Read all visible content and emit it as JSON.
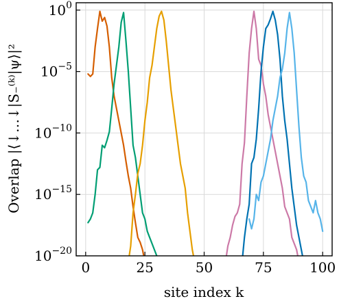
{
  "chart_data": {
    "type": "line",
    "title": "",
    "xlabel": "site index k",
    "ylabel": "Overlap |⟨↓…↓|S₋⁽ᵏ⁾|ψ⟩|²",
    "xlim": [
      -4,
      104
    ],
    "ylim_log10": [
      -20,
      0.6
    ],
    "yscale": "log",
    "grid": true,
    "legend": "none",
    "x_ticks": [
      0,
      25,
      50,
      75,
      100
    ],
    "x_tick_labels": [
      "0",
      "25",
      "50",
      "75",
      "100"
    ],
    "y_ticks_log10": [
      0,
      -5,
      -10,
      -15,
      -20
    ],
    "y_tick_labels": [
      {
        "base": "10",
        "exp": "0"
      },
      {
        "base": "10",
        "exp": "−5"
      },
      {
        "base": "10",
        "exp": "−10"
      },
      {
        "base": "10",
        "exp": "−15"
      },
      {
        "base": "10",
        "exp": "−20"
      }
    ],
    "series": [
      {
        "color": "#D55E00",
        "log10_points": [
          [
            1,
            -5.2
          ],
          [
            2,
            -5.4
          ],
          [
            3,
            -5.2
          ],
          [
            4,
            -3
          ],
          [
            5,
            -1.5
          ],
          [
            6,
            -0.1
          ],
          [
            7,
            -0.9
          ],
          [
            8,
            -0.6
          ],
          [
            9,
            -1.3
          ],
          [
            10,
            -3
          ],
          [
            11,
            -5.5
          ],
          [
            12,
            -7
          ],
          [
            13,
            -8
          ],
          [
            14,
            -9
          ],
          [
            15,
            -10
          ],
          [
            16,
            -11
          ],
          [
            17,
            -12.3
          ],
          [
            18,
            -13.5
          ],
          [
            19,
            -14.5
          ],
          [
            20,
            -16
          ],
          [
            21,
            -17.3
          ],
          [
            22,
            -18.5
          ],
          [
            23,
            -18.9
          ],
          [
            24,
            -19.5
          ],
          [
            25,
            -20.5
          ]
        ]
      },
      {
        "color": "#009E73",
        "log10_points": [
          [
            1,
            -17.3
          ],
          [
            2,
            -17
          ],
          [
            3,
            -16.5
          ],
          [
            4,
            -15
          ],
          [
            5,
            -13
          ],
          [
            6,
            -12.8
          ],
          [
            7,
            -11
          ],
          [
            8,
            -11.2
          ],
          [
            9,
            -10.6
          ],
          [
            10,
            -9.9
          ],
          [
            11,
            -8
          ],
          [
            12,
            -6
          ],
          [
            13,
            -4.5
          ],
          [
            14,
            -3
          ],
          [
            15,
            -1
          ],
          [
            16,
            -0.2
          ],
          [
            17,
            -2.5
          ],
          [
            18,
            -5
          ],
          [
            19,
            -8
          ],
          [
            20,
            -11
          ],
          [
            21,
            -12
          ],
          [
            22,
            -13.5
          ],
          [
            23,
            -15
          ],
          [
            24,
            -16.5
          ],
          [
            25,
            -17
          ],
          [
            26,
            -18
          ],
          [
            27,
            -18.5
          ],
          [
            28,
            -19
          ],
          [
            29,
            -19.5
          ],
          [
            30,
            -20
          ],
          [
            31,
            -20.5
          ]
        ]
      },
      {
        "color": "#E69F00",
        "log10_points": [
          [
            18,
            -20.5
          ],
          [
            19,
            -19.2
          ],
          [
            20,
            -16.5
          ],
          [
            21,
            -15
          ],
          [
            22,
            -13.3
          ],
          [
            23,
            -12.5
          ],
          [
            24,
            -11
          ],
          [
            25,
            -9
          ],
          [
            26,
            -7.5
          ],
          [
            27,
            -5.5
          ],
          [
            28,
            -4.5
          ],
          [
            29,
            -3
          ],
          [
            30,
            -1.5
          ],
          [
            31,
            -0.5
          ],
          [
            32,
            -0.1
          ],
          [
            33,
            -0.8
          ],
          [
            34,
            -2.5
          ],
          [
            35,
            -4.5
          ],
          [
            36,
            -6.5
          ],
          [
            37,
            -8
          ],
          [
            38,
            -9.5
          ],
          [
            39,
            -11
          ],
          [
            40,
            -12.5
          ],
          [
            41,
            -13.5
          ],
          [
            42,
            -14.5
          ],
          [
            43,
            -16.5
          ],
          [
            44,
            -18
          ],
          [
            45,
            -19.5
          ],
          [
            46,
            -20.5
          ]
        ]
      },
      {
        "color": "#CC79A7",
        "log10_points": [
          [
            59,
            -20.5
          ],
          [
            60,
            -19.2
          ],
          [
            61,
            -18.5
          ],
          [
            62,
            -17.5
          ],
          [
            63,
            -16.8
          ],
          [
            64,
            -16.5
          ],
          [
            65,
            -15.8
          ],
          [
            66,
            -12.5
          ],
          [
            67,
            -10.8
          ],
          [
            68,
            -7
          ],
          [
            69,
            -3.5
          ],
          [
            70,
            -1.5
          ],
          [
            71,
            -0.1
          ],
          [
            72,
            -1.5
          ],
          [
            73,
            -4
          ],
          [
            74,
            -4.5
          ],
          [
            75,
            -6
          ],
          [
            76,
            -7
          ],
          [
            77,
            -8.5
          ],
          [
            78,
            -9.5
          ],
          [
            79,
            -10.5
          ],
          [
            80,
            -11.5
          ],
          [
            81,
            -12.5
          ],
          [
            82,
            -13.5
          ],
          [
            83,
            -14.5
          ],
          [
            84,
            -16
          ],
          [
            85,
            -16.5
          ],
          [
            86,
            -17
          ],
          [
            87,
            -18.5
          ],
          [
            88,
            -19
          ],
          [
            89,
            -19.5
          ],
          [
            90,
            -20.5
          ]
        ]
      },
      {
        "color": "#0072B2",
        "log10_points": [
          [
            66,
            -20.5
          ],
          [
            67,
            -18.5
          ],
          [
            68,
            -17
          ],
          [
            69,
            -15.8
          ],
          [
            70,
            -12.5
          ],
          [
            71,
            -12
          ],
          [
            72,
            -10.5
          ],
          [
            73,
            -8
          ],
          [
            74,
            -5
          ],
          [
            75,
            -3
          ],
          [
            76,
            -1.5
          ],
          [
            77,
            -1.2
          ],
          [
            78,
            -0.7
          ],
          [
            79,
            -0.1
          ],
          [
            80,
            -0.8
          ],
          [
            81,
            -2
          ],
          [
            82,
            -4
          ],
          [
            83,
            -7
          ],
          [
            84,
            -9
          ],
          [
            85,
            -10.5
          ],
          [
            86,
            -12.5
          ],
          [
            87,
            -14.5
          ],
          [
            88,
            -16
          ],
          [
            89,
            -17.5
          ],
          [
            90,
            -18.5
          ],
          [
            91,
            -19.5
          ],
          [
            92,
            -20.5
          ]
        ]
      },
      {
        "color": "#56B4E9",
        "log10_points": [
          [
            69,
            -17
          ],
          [
            70,
            -17.8
          ],
          [
            71,
            -17
          ],
          [
            72,
            -15
          ],
          [
            73,
            -15.5
          ],
          [
            74,
            -14
          ],
          [
            75,
            -13.5
          ],
          [
            76,
            -12.5
          ],
          [
            77,
            -11.5
          ],
          [
            78,
            -10.5
          ],
          [
            79,
            -9
          ],
          [
            80,
            -8
          ],
          [
            81,
            -7
          ],
          [
            82,
            -5.5
          ],
          [
            83,
            -4.8
          ],
          [
            84,
            -3.5
          ],
          [
            85,
            -1.5
          ],
          [
            86,
            -0.2
          ],
          [
            87,
            -1.5
          ],
          [
            88,
            -3.5
          ],
          [
            89,
            -6.5
          ],
          [
            90,
            -9.5
          ],
          [
            91,
            -12
          ],
          [
            92,
            -13.5
          ],
          [
            93,
            -14
          ],
          [
            94,
            -15.5
          ],
          [
            95,
            -16
          ],
          [
            96,
            -16.5
          ],
          [
            97,
            -15.5
          ],
          [
            98,
            -16.5
          ],
          [
            99,
            -17
          ],
          [
            100,
            -18
          ]
        ]
      }
    ]
  }
}
